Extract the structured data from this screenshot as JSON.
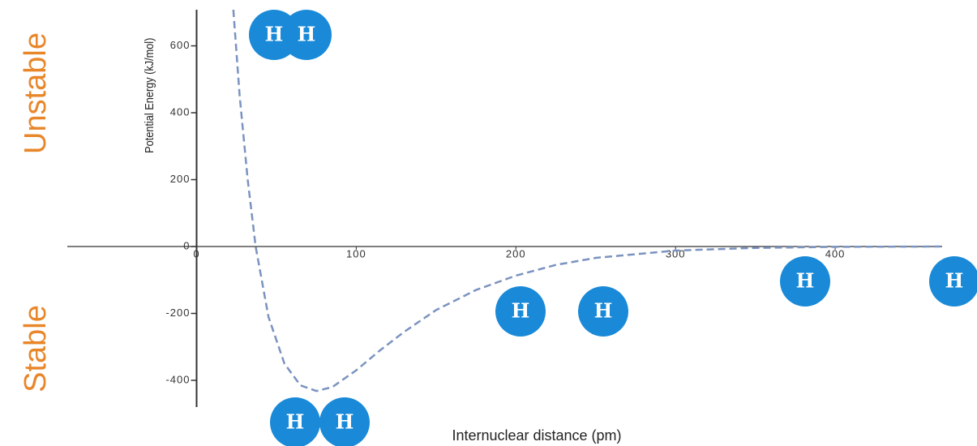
{
  "chart_data": {
    "type": "line",
    "y_label": "Potential Energy (kJ/mol)",
    "x_label": "Internuclear distance (pm)",
    "side_labels": [
      "Unstable",
      "Stable"
    ],
    "annotations": [
      "H",
      "H",
      "H",
      "H",
      "H",
      "H",
      "H",
      "H"
    ],
    "x": [
      23,
      27,
      32,
      37,
      45,
      55,
      65,
      75,
      85,
      100,
      115,
      130,
      150,
      175,
      200,
      225,
      250,
      300,
      350,
      400,
      466
    ],
    "values": [
      708,
      450,
      200,
      0,
      -210,
      -350,
      -415,
      -432,
      -420,
      -370,
      -310,
      -255,
      -190,
      -130,
      -87,
      -55,
      -34,
      -12,
      -4,
      -1,
      0
    ],
    "color": "#7b93c0",
    "xlim": [
      -81,
      467
    ],
    "xticks": [
      0,
      100,
      200,
      300,
      400
    ],
    "ylim": [
      -480,
      708
    ],
    "yticks": [
      -400,
      -200,
      0,
      200,
      400,
      600
    ]
  }
}
